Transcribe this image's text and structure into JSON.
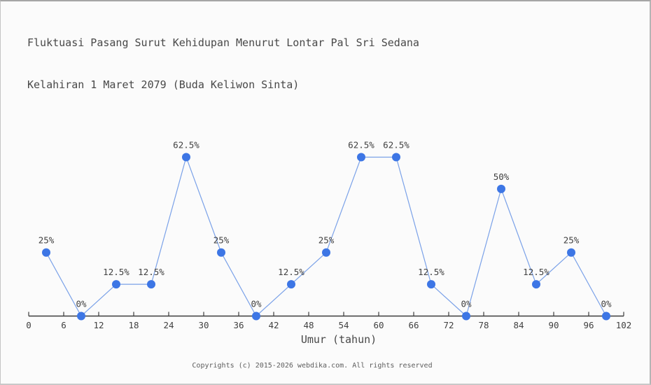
{
  "title": {
    "line1": "Fluktuasi Pasang Surut Kehidupan Menurut Lontar Pal Sri Sedana",
    "line2": "Kelahiran 1 Maret 2079 (Buda Keliwon Sinta)"
  },
  "footer": {
    "copyright": "Copyrights (c) 2015-2026 webdika.com. All rights reserved"
  },
  "colors": {
    "marker": "#3d76e5",
    "series_line": "#7aa1e8",
    "axis": "#3c3c3c",
    "tick_text": "#414141",
    "point_label_text": "#414141",
    "title_text": "#484848",
    "footer_text": "#5d5d5d",
    "background": "#fbfbfb"
  },
  "chart_data": {
    "type": "line",
    "title": "Fluktuasi Pasang Surut Kehidupan Menurut Lontar Pal Sri Sedana Kelahiran 1 Maret 2079 (Buda Keliwon Sinta)",
    "xlabel": "Umur (tahun)",
    "ylabel": "",
    "x": [
      3,
      9,
      15,
      21,
      27,
      33,
      39,
      45,
      51,
      57,
      63,
      69,
      75,
      81,
      87,
      93,
      99
    ],
    "values": [
      25,
      0,
      12.5,
      12.5,
      62.5,
      25,
      0,
      12.5,
      25,
      62.5,
      62.5,
      12.5,
      0,
      50,
      12.5,
      25,
      0
    ],
    "point_labels": [
      "25%",
      "0%",
      "12.5%",
      "12.5%",
      "62.5%",
      "25%",
      "0%",
      "12.5%",
      "25%",
      "62.5%",
      "62.5%",
      "12.5%",
      "0%",
      "50%",
      "12.5%",
      "25%",
      "0%"
    ],
    "x_ticks": [
      0,
      6,
      12,
      18,
      24,
      30,
      36,
      42,
      48,
      54,
      60,
      66,
      72,
      78,
      84,
      90,
      96,
      102
    ],
    "xlim": [
      0,
      102
    ],
    "ylim": [
      0,
      70
    ],
    "grid": false,
    "legend": "none",
    "y_axis_drawn": false
  }
}
